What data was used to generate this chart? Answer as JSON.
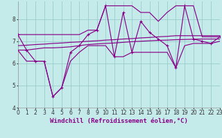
{
  "xlabel": "Windchill (Refroidissement éolien,°C)",
  "background_color": "#c5eaea",
  "line_color": "#880088",
  "grid_color": "#99cccc",
  "hours": [
    0,
    1,
    2,
    3,
    4,
    5,
    6,
    7,
    8,
    9,
    10,
    11,
    12,
    13,
    14,
    15,
    16,
    17,
    18,
    19,
    20,
    21,
    22,
    23
  ],
  "series_main": [
    7.3,
    6.6,
    6.1,
    6.1,
    4.5,
    4.9,
    6.5,
    6.8,
    7.3,
    7.5,
    8.6,
    6.3,
    8.3,
    6.5,
    7.9,
    7.4,
    7.1,
    6.8,
    5.8,
    8.6,
    7.1,
    7.0,
    6.9,
    7.2
  ],
  "series_lower": [
    6.6,
    6.1,
    6.1,
    6.1,
    4.5,
    4.9,
    6.1,
    6.5,
    6.8,
    6.8,
    6.8,
    6.3,
    6.3,
    6.5,
    6.5,
    6.5,
    6.5,
    6.5,
    5.8,
    6.8,
    6.9,
    6.9,
    6.9,
    7.0
  ],
  "series_upper": [
    7.3,
    7.3,
    7.3,
    7.3,
    7.3,
    7.3,
    7.3,
    7.3,
    7.5,
    7.5,
    8.6,
    8.6,
    8.6,
    8.6,
    8.3,
    8.3,
    7.9,
    8.3,
    8.6,
    8.6,
    8.6,
    7.2,
    7.2,
    7.2
  ],
  "series_trend1": [
    6.6,
    6.6,
    6.65,
    6.7,
    6.7,
    6.72,
    6.75,
    6.8,
    6.85,
    6.88,
    6.9,
    6.92,
    6.95,
    6.98,
    7.0,
    7.02,
    7.04,
    7.05,
    7.07,
    7.08,
    7.09,
    7.1,
    7.1,
    7.1
  ],
  "series_trend2": [
    6.8,
    6.82,
    6.85,
    6.87,
    6.9,
    6.92,
    6.95,
    6.97,
    7.0,
    7.02,
    7.05,
    7.07,
    7.1,
    7.12,
    7.15,
    7.17,
    7.2,
    7.22,
    7.25,
    7.25,
    7.25,
    7.25,
    7.25,
    7.25
  ],
  "xlim": [
    0,
    23
  ],
  "ylim": [
    4.0,
    8.8
  ],
  "yticks": [
    4,
    5,
    6,
    7,
    8
  ],
  "xticks": [
    0,
    1,
    2,
    3,
    4,
    5,
    6,
    7,
    8,
    9,
    10,
    11,
    12,
    13,
    14,
    15,
    16,
    17,
    18,
    19,
    20,
    21,
    22,
    23
  ],
  "tick_fontsize": 5.5,
  "label_fontsize": 6.5
}
